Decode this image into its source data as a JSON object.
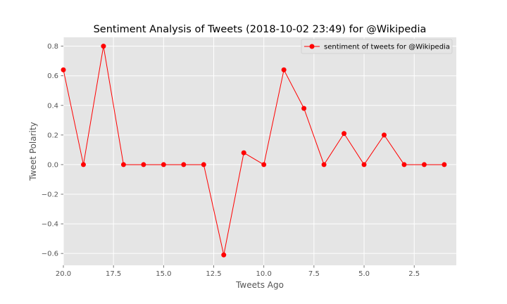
{
  "chart_data": {
    "type": "line",
    "title": "Sentiment Analysis of Tweets (2018-10-02 23:49) for @Wikipedia",
    "xlabel": "Tweets Ago",
    "ylabel": "Tweet Polarity",
    "x_inverted": true,
    "xlim": [
      20,
      0.4
    ],
    "ylim": [
      -0.68,
      0.86
    ],
    "x_ticks": [
      20.0,
      17.5,
      15.0,
      12.5,
      10.0,
      7.5,
      5.0,
      2.5
    ],
    "x_tick_labels": [
      "20.0",
      "17.5",
      "15.0",
      "12.5",
      "10.0",
      "7.5",
      "5.0",
      "2.5"
    ],
    "y_ticks": [
      -0.6,
      -0.4,
      -0.2,
      0.0,
      0.2,
      0.4,
      0.6,
      0.8
    ],
    "y_tick_labels": [
      "−0.6",
      "−0.4",
      "−0.2",
      "0.0",
      "0.2",
      "0.4",
      "0.6",
      "0.8"
    ],
    "grid": true,
    "legend_position": "top-right",
    "series": [
      {
        "name": "sentiment of tweets for @Wikipedia",
        "color": "#ff0000",
        "x": [
          20,
          19,
          18,
          17,
          16,
          15,
          14,
          13,
          12,
          11,
          10,
          9,
          8,
          7,
          6,
          5,
          4,
          3,
          2,
          1
        ],
        "y": [
          0.64,
          0.0,
          0.8,
          0.0,
          0.0,
          0.0,
          0.0,
          0.0,
          -0.61,
          0.08,
          0.0,
          0.64,
          0.38,
          0.0,
          0.21,
          0.0,
          0.2,
          0.0,
          0.0,
          0.0
        ]
      }
    ]
  }
}
